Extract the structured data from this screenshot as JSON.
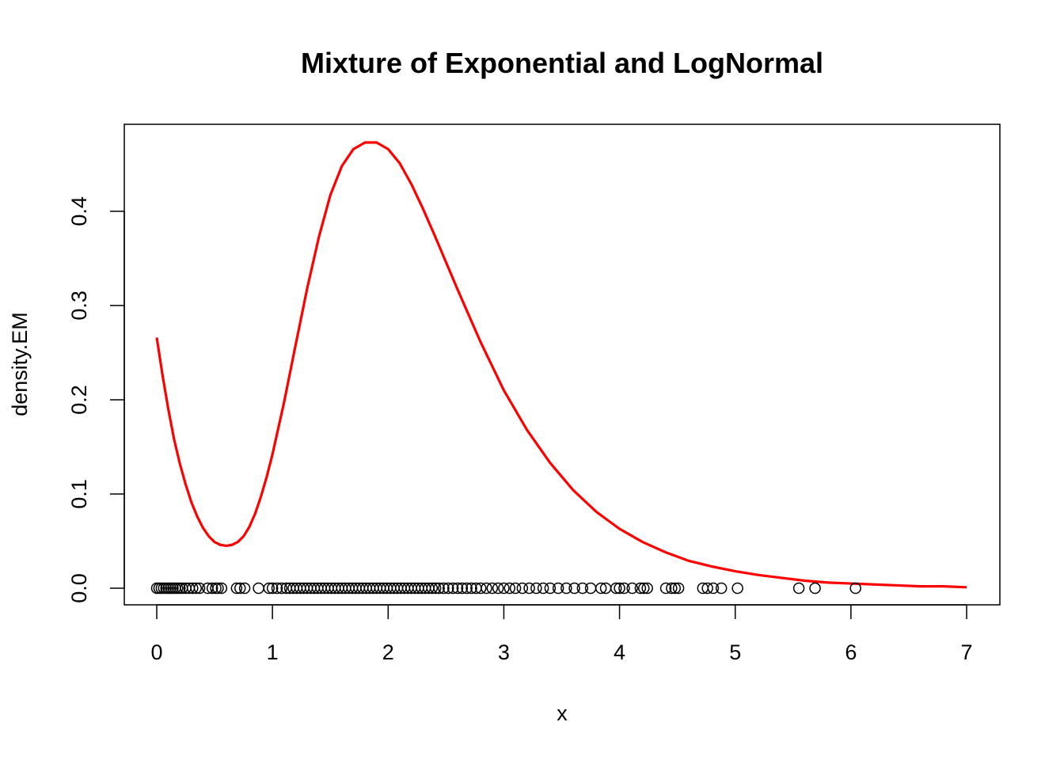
{
  "chart_data": {
    "type": "line",
    "title": "Mixture of Exponential and LogNormal",
    "xlabel": "x",
    "ylabel": "density.EM",
    "xlim": [
      0,
      7
    ],
    "ylim": [
      0,
      0.47
    ],
    "x_ticks": [
      "0",
      "1",
      "2",
      "3",
      "4",
      "5",
      "6",
      "7"
    ],
    "y_ticks": [
      "0.0",
      "0.1",
      "0.2",
      "0.3",
      "0.4"
    ],
    "grid": false,
    "series": [
      {
        "color": "#ff0000",
        "style": "line",
        "x": [
          0,
          0.05,
          0.1,
          0.15,
          0.2,
          0.25,
          0.3,
          0.35,
          0.4,
          0.45,
          0.5,
          0.55,
          0.6,
          0.65,
          0.7,
          0.75,
          0.8,
          0.85,
          0.9,
          0.95,
          1.0,
          1.1,
          1.2,
          1.3,
          1.4,
          1.5,
          1.6,
          1.7,
          1.8,
          1.9,
          2.0,
          2.1,
          2.2,
          2.3,
          2.4,
          2.5,
          2.6,
          2.8,
          3.0,
          3.2,
          3.4,
          3.6,
          3.8,
          4.0,
          4.2,
          4.4,
          4.6,
          4.8,
          5.0,
          5.2,
          5.4,
          5.6,
          5.8,
          6.0,
          6.2,
          6.4,
          6.6,
          6.8,
          7.0
        ],
        "y": [
          0.266,
          0.226,
          0.19,
          0.158,
          0.132,
          0.11,
          0.091,
          0.076,
          0.064,
          0.055,
          0.049,
          0.046,
          0.045,
          0.046,
          0.049,
          0.055,
          0.065,
          0.079,
          0.097,
          0.118,
          0.142,
          0.197,
          0.258,
          0.318,
          0.372,
          0.417,
          0.448,
          0.466,
          0.473,
          0.473,
          0.466,
          0.451,
          0.429,
          0.403,
          0.375,
          0.346,
          0.317,
          0.261,
          0.21,
          0.168,
          0.133,
          0.104,
          0.081,
          0.063,
          0.049,
          0.038,
          0.029,
          0.023,
          0.018,
          0.014,
          0.011,
          0.008,
          0.006,
          0.005,
          0.004,
          0.003,
          0.002,
          0.002,
          0.001
        ]
      },
      {
        "color": "#000000",
        "style": "points",
        "marker": "open-circle",
        "x": [
          0.0,
          0.02,
          0.04,
          0.06,
          0.08,
          0.1,
          0.12,
          0.14,
          0.16,
          0.18,
          0.2,
          0.22,
          0.25,
          0.28,
          0.31,
          0.34,
          0.37,
          0.44,
          0.48,
          0.51,
          0.53,
          0.56,
          0.69,
          0.72,
          0.76,
          0.88,
          0.97,
          1.0,
          1.04,
          1.08,
          1.12,
          1.15,
          1.18,
          1.21,
          1.24,
          1.27,
          1.3,
          1.33,
          1.36,
          1.39,
          1.42,
          1.45,
          1.48,
          1.51,
          1.54,
          1.57,
          1.6,
          1.63,
          1.66,
          1.69,
          1.72,
          1.75,
          1.78,
          1.81,
          1.84,
          1.87,
          1.9,
          1.93,
          1.96,
          1.99,
          2.02,
          2.05,
          2.08,
          2.11,
          2.14,
          2.17,
          2.2,
          2.23,
          2.26,
          2.29,
          2.32,
          2.35,
          2.38,
          2.41,
          2.44,
          2.48,
          2.52,
          2.56,
          2.6,
          2.64,
          2.68,
          2.72,
          2.76,
          2.8,
          2.85,
          2.9,
          2.95,
          3.0,
          3.05,
          3.1,
          3.16,
          3.22,
          3.28,
          3.34,
          3.4,
          3.47,
          3.54,
          3.61,
          3.68,
          3.75,
          3.84,
          3.88,
          3.97,
          4.0,
          4.04,
          4.11,
          4.18,
          4.21,
          4.24,
          4.4,
          4.45,
          4.48,
          4.51,
          4.72,
          4.76,
          4.81,
          4.88,
          5.02,
          5.55,
          5.69,
          6.04
        ],
        "y": [
          0,
          0,
          0,
          0,
          0,
          0,
          0,
          0,
          0,
          0,
          0,
          0,
          0,
          0,
          0,
          0,
          0,
          0,
          0,
          0,
          0,
          0,
          0,
          0,
          0,
          0,
          0,
          0,
          0,
          0,
          0,
          0,
          0,
          0,
          0,
          0,
          0,
          0,
          0,
          0,
          0,
          0,
          0,
          0,
          0,
          0,
          0,
          0,
          0,
          0,
          0,
          0,
          0,
          0,
          0,
          0,
          0,
          0,
          0,
          0,
          0,
          0,
          0,
          0,
          0,
          0,
          0,
          0,
          0,
          0,
          0,
          0,
          0,
          0,
          0,
          0,
          0,
          0,
          0,
          0,
          0,
          0,
          0,
          0,
          0,
          0,
          0,
          0,
          0,
          0,
          0,
          0,
          0,
          0,
          0,
          0,
          0,
          0,
          0,
          0,
          0,
          0,
          0,
          0,
          0,
          0,
          0,
          0,
          0,
          0,
          0,
          0,
          0,
          0,
          0,
          0,
          0,
          0,
          0,
          0,
          0
        ]
      }
    ]
  }
}
